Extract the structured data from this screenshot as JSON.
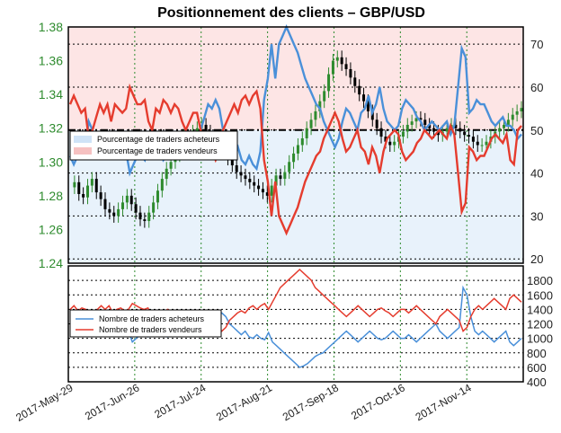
{
  "chart_data": [
    {
      "type": "candlestick+line",
      "title": "Positionnement des clients – GBP/USD",
      "left_axis": {
        "ylim": [
          1.24,
          1.38
        ],
        "ticks": [
          "1.24",
          "1.26",
          "1.28",
          "1.30",
          "1.32",
          "1.34",
          "1.36",
          "1.38"
        ],
        "color": "#2e8b2e"
      },
      "right_axis": {
        "ylim": [
          19,
          74
        ],
        "ticks": [
          "20",
          "30",
          "40",
          "50",
          "60",
          "70"
        ]
      },
      "reference_line": 50,
      "legend": {
        "position": "upper-left",
        "entries": [
          "Pourcentage de traders acheteurs",
          "Pourcentage de traders vendeurs"
        ]
      },
      "series": [
        {
          "name": "Pourcentage de traders acheteurs",
          "color": "#4a90d9",
          "values": [
            44,
            42,
            44,
            46,
            45,
            52,
            50,
            47,
            44,
            46,
            44,
            48,
            44,
            45,
            46,
            45,
            40,
            42,
            44,
            44,
            43,
            48,
            50,
            45,
            46,
            43,
            44,
            46,
            44,
            45,
            48,
            50,
            48,
            46,
            46,
            50,
            53,
            56,
            55,
            57,
            55,
            50,
            48,
            46,
            44,
            46,
            43,
            42,
            44,
            42,
            41,
            45,
            57,
            62,
            70,
            62,
            70,
            72,
            74,
            72,
            70,
            68,
            65,
            62,
            60,
            58,
            56,
            55,
            52,
            50,
            48,
            46,
            48,
            52,
            55,
            54,
            52,
            50,
            54,
            55,
            58,
            54,
            56,
            60,
            55,
            52,
            51,
            50,
            51,
            55,
            57,
            56,
            55,
            53,
            52,
            50,
            51,
            52,
            51,
            50,
            51,
            52,
            49,
            51,
            60,
            69,
            67,
            54,
            55,
            57,
            56,
            56,
            54,
            52,
            51,
            52,
            53,
            51,
            51,
            50,
            48,
            49
          ]
        },
        {
          "name": "Pourcentage de traders vendeurs",
          "color": "#e53c2e",
          "values": [
            56,
            58,
            56,
            54,
            55,
            48,
            50,
            53,
            56,
            54,
            56,
            52,
            56,
            55,
            54,
            55,
            60,
            58,
            56,
            56,
            57,
            52,
            50,
            55,
            54,
            57,
            56,
            54,
            56,
            55,
            52,
            50,
            52,
            54,
            54,
            50,
            47,
            44,
            45,
            43,
            45,
            50,
            52,
            54,
            56,
            54,
            57,
            58,
            56,
            58,
            59,
            55,
            43,
            38,
            30,
            38,
            30,
            28,
            26,
            28,
            30,
            32,
            35,
            38,
            40,
            42,
            44,
            45,
            48,
            50,
            52,
            54,
            52,
            48,
            45,
            46,
            48,
            50,
            46,
            45,
            42,
            46,
            44,
            40,
            45,
            48,
            49,
            50,
            49,
            45,
            43,
            44,
            45,
            47,
            48,
            50,
            49,
            48,
            49,
            50,
            49,
            48,
            51,
            49,
            40,
            31,
            33,
            46,
            45,
            43,
            44,
            44,
            46,
            48,
            49,
            48,
            47,
            49,
            43,
            42,
            50,
            51
          ]
        }
      ],
      "candles": {
        "up_color": "#2e8b2e",
        "down_color": "#000000",
        "close": [
          1.285,
          1.288,
          1.281,
          1.279,
          1.286,
          1.29,
          1.282,
          1.278,
          1.272,
          1.27,
          1.268,
          1.272,
          1.276,
          1.28,
          1.275,
          1.27,
          1.266,
          1.265,
          1.27,
          1.276,
          1.283,
          1.29,
          1.296,
          1.3,
          1.304,
          1.31,
          1.315,
          1.312,
          1.318,
          1.32,
          1.322,
          1.318,
          1.312,
          1.31,
          1.308,
          1.305,
          1.302,
          1.298,
          1.294,
          1.292,
          1.29,
          1.288,
          1.286,
          1.284,
          1.282,
          1.28,
          1.286,
          1.292,
          1.29,
          1.294,
          1.3,
          1.305,
          1.31,
          1.314,
          1.32,
          1.325,
          1.33,
          1.336,
          1.342,
          1.352,
          1.36,
          1.362,
          1.358,
          1.355,
          1.35,
          1.345,
          1.34,
          1.336,
          1.33,
          1.325,
          1.32,
          1.315,
          1.312,
          1.31,
          1.312,
          1.315,
          1.318,
          1.322,
          1.324,
          1.326,
          1.325,
          1.322,
          1.32,
          1.318,
          1.316,
          1.318,
          1.32,
          1.322,
          1.32,
          1.318,
          1.316,
          1.315,
          1.312,
          1.31,
          1.31,
          1.312,
          1.315,
          1.318,
          1.32,
          1.322,
          1.325,
          1.328,
          1.33,
          1.332
        ]
      },
      "x_ticks": [
        "2017-May-29",
        "2017-Jun-26",
        "2017-Jul-24",
        "2017-Aug-21",
        "2017-Sep-18",
        "2017-Oct-16",
        "2017-Nov-14"
      ]
    },
    {
      "type": "line",
      "right_axis": {
        "ylim": [
          400,
          2000
        ],
        "ticks": [
          "400",
          "600",
          "800",
          "1000",
          "1200",
          "1400",
          "1600",
          "1800"
        ]
      },
      "legend": {
        "position": "upper-left",
        "entries": [
          "Nombre de traders acheteurs",
          "Nombre de traders vendeurs"
        ]
      },
      "series": [
        {
          "name": "Nombre de traders acheteurs",
          "color": "#4a90d9",
          "values": [
            1150,
            1100,
            1150,
            1200,
            1120,
            1350,
            1250,
            1150,
            1050,
            1100,
            1050,
            1150,
            1050,
            1100,
            1150,
            1100,
            950,
            1000,
            1050,
            1050,
            1020,
            1150,
            1200,
            1100,
            1100,
            1020,
            1050,
            1100,
            1050,
            1100,
            1150,
            1200,
            1150,
            1100,
            1100,
            1200,
            1250,
            1300,
            1300,
            1350,
            1300,
            1200,
            1150,
            1100,
            1050,
            1100,
            1020,
            1000,
            1050,
            1000,
            980,
            1080,
            950,
            900,
            850,
            800,
            750,
            700,
            650,
            600,
            620,
            650,
            700,
            750,
            780,
            800,
            850,
            900,
            950,
            1000,
            1050,
            1100,
            1050,
            1000,
            950,
            1000,
            1050,
            1100,
            1050,
            1000,
            980,
            1000,
            1050,
            1100,
            1050,
            1000,
            1000,
            1050,
            1000,
            950,
            1000,
            1050,
            1100,
            1150,
            1200,
            1100,
            1050,
            1000,
            1050,
            1100,
            1150,
            1700,
            1600,
            1300,
            1100,
            1050,
            1100,
            1050,
            1000,
            950,
            1000,
            1050,
            1100,
            950,
            900,
            950,
            1000
          ]
        },
        {
          "name": "Nombre de traders vendeurs",
          "color": "#e53c2e",
          "values": [
            1400,
            1450,
            1380,
            1420,
            1400,
            1300,
            1350,
            1400,
            1450,
            1400,
            1450,
            1350,
            1400,
            1420,
            1380,
            1400,
            1480,
            1450,
            1420,
            1400,
            1420,
            1300,
            1250,
            1350,
            1350,
            1400,
            1380,
            1350,
            1380,
            1350,
            1300,
            1250,
            1300,
            1350,
            1350,
            1250,
            1200,
            1150,
            1150,
            1100,
            1150,
            1250,
            1300,
            1350,
            1380,
            1350,
            1420,
            1450,
            1400,
            1450,
            1480,
            1400,
            1500,
            1600,
            1700,
            1750,
            1800,
            1850,
            1900,
            1950,
            1900,
            1850,
            1800,
            1700,
            1650,
            1600,
            1550,
            1500,
            1450,
            1400,
            1350,
            1300,
            1350,
            1400,
            1450,
            1400,
            1350,
            1300,
            1350,
            1400,
            1420,
            1380,
            1350,
            1300,
            1350,
            1400,
            1400,
            1350,
            1400,
            1450,
            1400,
            1350,
            1300,
            1250,
            1200,
            1300,
            1350,
            1400,
            1350,
            1300,
            1250,
            1100,
            1150,
            1300,
            1400,
            1450,
            1400,
            1450,
            1500,
            1550,
            1500,
            1450,
            1400,
            1550,
            1600,
            1550,
            1500
          ]
        }
      ]
    }
  ]
}
